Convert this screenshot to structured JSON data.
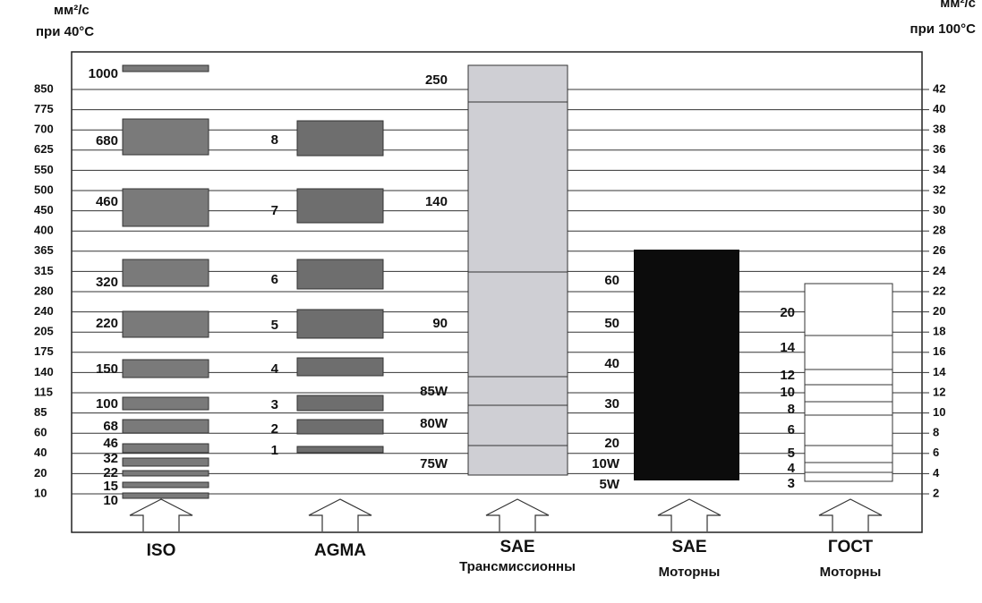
{
  "left_axis": {
    "unit": "мм²/с",
    "condition": "при 40°С",
    "labels": [
      "850",
      "775",
      "700",
      "625",
      "550",
      "500",
      "450",
      "400",
      "365",
      "315",
      "280",
      "240",
      "205",
      "175",
      "140",
      "115",
      "85",
      "60",
      "40",
      "20",
      "10"
    ]
  },
  "right_axis": {
    "unit": "мм²/с",
    "condition": "при 100°С",
    "labels": [
      "42",
      "40",
      "38",
      "36",
      "34",
      "32",
      "30",
      "28",
      "26",
      "24",
      "22",
      "20",
      "18",
      "16",
      "14",
      "12",
      "10",
      "8",
      "6",
      "4",
      "2"
    ]
  },
  "columns": [
    {
      "name": "ISO",
      "grades": [
        "1000",
        "680",
        "460",
        "320",
        "220",
        "150",
        "100",
        "68",
        "46",
        "32",
        "22",
        "15",
        "10"
      ]
    },
    {
      "name": "AGMA",
      "grades": [
        "8",
        "7",
        "6",
        "5",
        "4",
        "3",
        "2",
        "1"
      ]
    },
    {
      "name": "SAE",
      "subtitle": "Трансмиссионны",
      "grades": [
        "250",
        "140",
        "90",
        "85W",
        "80W",
        "75W"
      ]
    },
    {
      "name": "SAE",
      "subtitle": "Моторны",
      "grades": [
        "60",
        "50",
        "40",
        "30",
        "20",
        "10W",
        "5W"
      ]
    },
    {
      "name": "ГОСТ",
      "subtitle": "Моторны",
      "grades": [
        "20",
        "14",
        "12",
        "10",
        "8",
        "6",
        "5",
        "4",
        "3"
      ]
    }
  ]
}
